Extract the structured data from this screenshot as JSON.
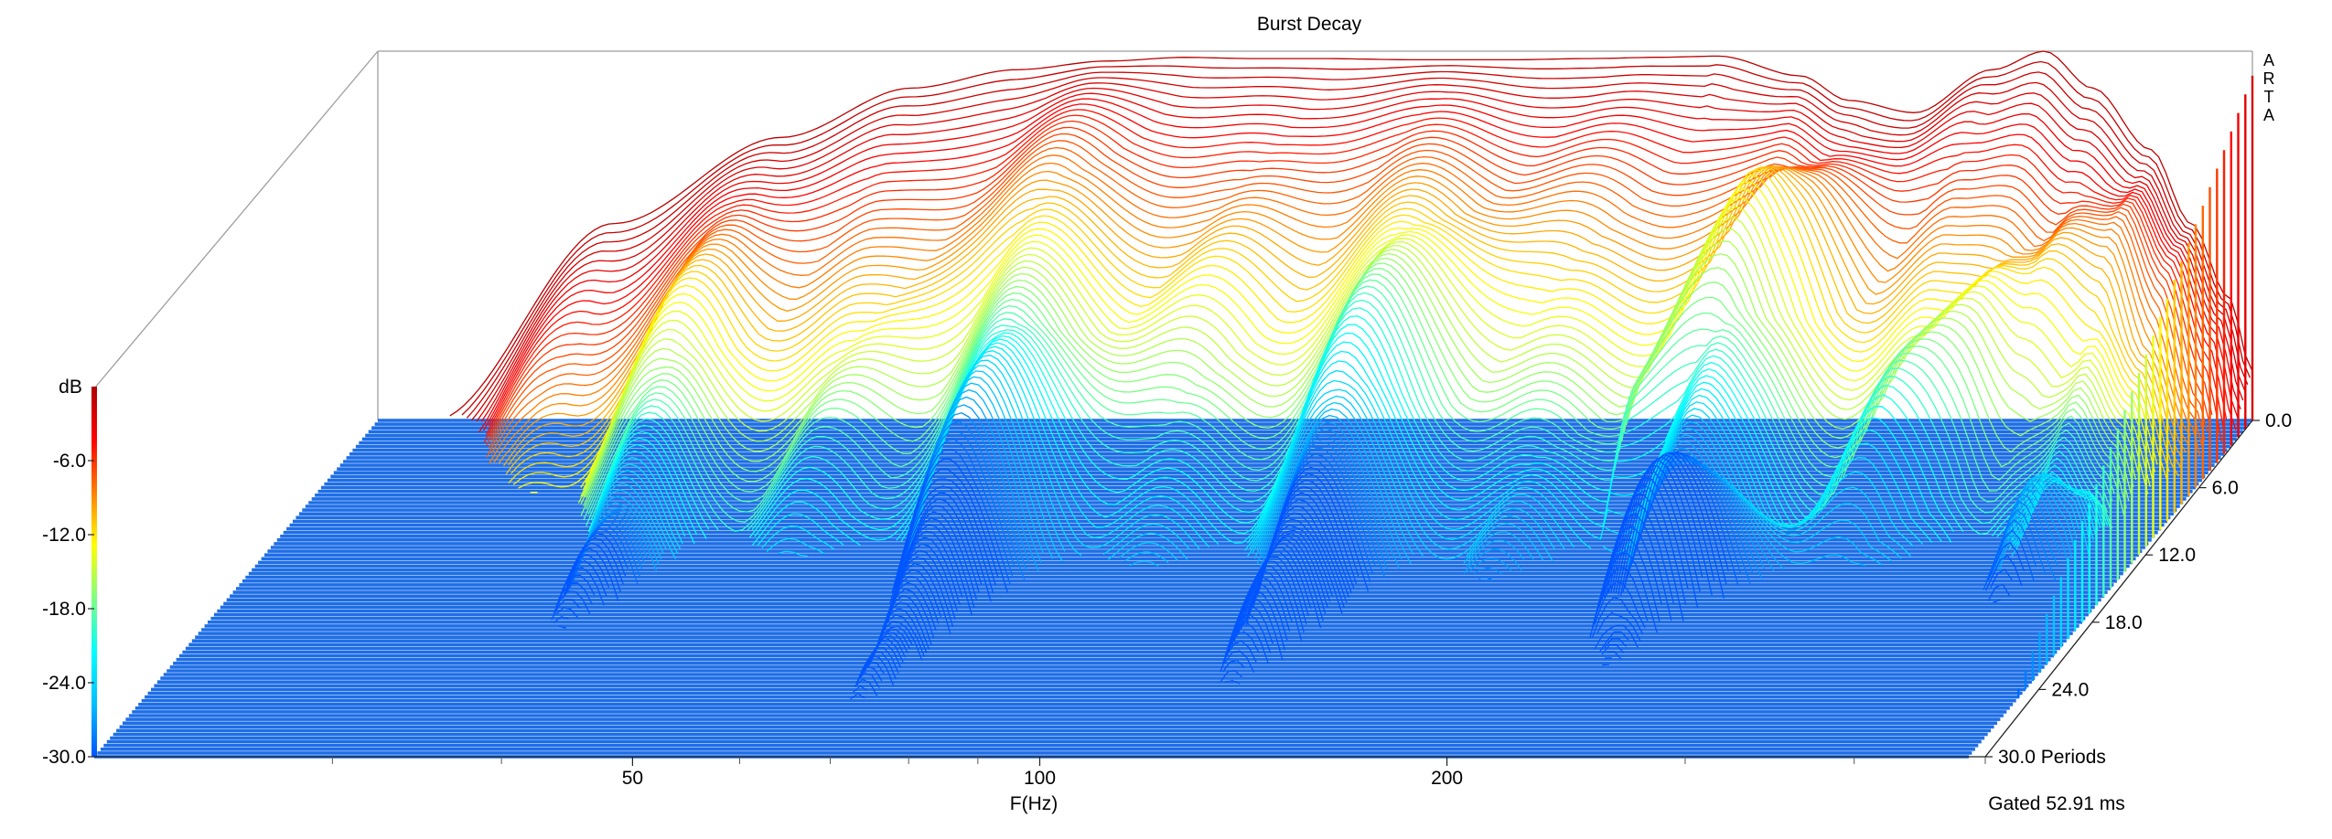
{
  "chart_data": {
    "type": "waterfall",
    "title": "Burst Decay",
    "xlabel": "F(Hz)",
    "x_scale": "log",
    "x_tick_labels": [
      "50",
      "100",
      "200"
    ],
    "x_tick_values": [
      50,
      100,
      200
    ],
    "x_minor_tick_values": [
      30,
      40,
      60,
      70,
      80,
      90,
      300,
      400,
      500
    ],
    "xlim": [
      20,
      500
    ],
    "z_label": "Periods",
    "z_tick_labels": [
      "0.0",
      "6.0",
      "12.0",
      "18.0",
      "24.0",
      "30.0"
    ],
    "z_tick_values": [
      0,
      6,
      12,
      18,
      24,
      30
    ],
    "zlim": [
      0,
      30
    ],
    "colorbar_label": "dB",
    "colorbar_tick_labels": [
      "-6.0",
      "-12.0",
      "-18.0",
      "-24.0",
      "-30.0"
    ],
    "colorbar_tick_values": [
      -6,
      -12,
      -18,
      -24,
      -30
    ],
    "ylim": [
      -30,
      0
    ],
    "gated_label": "Gated 52.91 ms",
    "watermark": "ARTA",
    "colormap": [
      "#0055ff",
      "#00bfff",
      "#00ffff",
      "#80ff80",
      "#ffff00",
      "#ff8000",
      "#ff0000",
      "#b00000"
    ],
    "floor_color": "#1e6ee6",
    "series": [
      {
        "periods": 0,
        "freq_hz": [
          22,
          30,
          40,
          50,
          60,
          70,
          80,
          90,
          100,
          120,
          140,
          160,
          180,
          200,
          230,
          250,
          280,
          320,
          350,
          380,
          420,
          450,
          480,
          500
        ],
        "db": [
          -30,
          -14,
          -7,
          -3,
          -1.5,
          -0.8,
          -0.5,
          -0.6,
          -0.6,
          -0.7,
          -0.7,
          -0.6,
          -0.5,
          -0.4,
          -2,
          -4,
          -5,
          -1.5,
          0,
          -3,
          -8,
          -14,
          -20,
          -26
        ]
      }
    ],
    "right_edge_peak_db": -2
  }
}
